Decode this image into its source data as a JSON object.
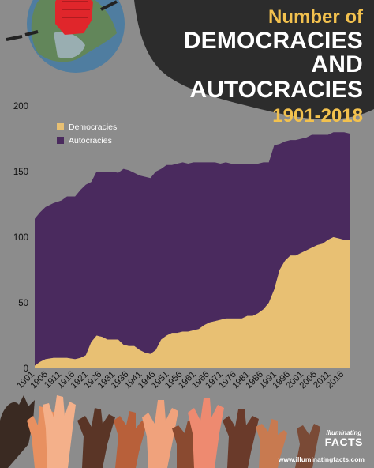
{
  "header": {
    "title_line1": "Number of",
    "title_line2": "DEMOCRACIES AND",
    "title_line3": "AUTOCRACIES",
    "title_years": "1901-2018"
  },
  "branding": {
    "line1": "Illuminating",
    "line2": "FACTS",
    "url": "www.illuminatingfacts.com"
  },
  "colors": {
    "democracies": "#e8c073",
    "autocracies": "#4a2a5e",
    "background": "#8c8c8c",
    "header": "#2c2c2c",
    "accent": "#f2c14e"
  },
  "chart_data": {
    "type": "area",
    "stacked": true,
    "ylim": [
      0,
      200
    ],
    "yticks": [
      0,
      50,
      100,
      150,
      200
    ],
    "xlim": [
      1901,
      2018
    ],
    "xtick_labels": [
      "1901",
      "1906",
      "1911",
      "1916",
      "1921",
      "1926",
      "1931",
      "1936",
      "1941",
      "1946",
      "1951",
      "1956",
      "1961",
      "1966",
      "1971",
      "1976",
      "1981",
      "1986",
      "1991",
      "1996",
      "2001",
      "2006",
      "2011",
      "2016"
    ],
    "legend": {
      "position": "top-left",
      "entries": [
        "Democracies",
        "Autocracies"
      ]
    },
    "x": [
      1901,
      1903,
      1905,
      1908,
      1911,
      1913,
      1916,
      1918,
      1920,
      1922,
      1924,
      1926,
      1928,
      1930,
      1932,
      1934,
      1936,
      1938,
      1940,
      1942,
      1944,
      1946,
      1948,
      1950,
      1952,
      1954,
      1956,
      1958,
      1960,
      1962,
      1964,
      1966,
      1968,
      1970,
      1972,
      1974,
      1976,
      1978,
      1980,
      1982,
      1984,
      1986,
      1988,
      1990,
      1992,
      1994,
      1996,
      1998,
      2000,
      2002,
      2004,
      2006,
      2008,
      2010,
      2012,
      2014,
      2016,
      2018
    ],
    "series": [
      {
        "name": "Democracies",
        "values": [
          2,
          5,
          7,
          8,
          8,
          8,
          7,
          8,
          10,
          20,
          25,
          24,
          22,
          22,
          22,
          18,
          17,
          17,
          14,
          12,
          11,
          14,
          22,
          25,
          27,
          27,
          28,
          28,
          29,
          30,
          33,
          35,
          36,
          37,
          38,
          38,
          38,
          38,
          40,
          40,
          42,
          45,
          50,
          60,
          75,
          82,
          86,
          86,
          88,
          90,
          92,
          94,
          95,
          98,
          100,
          99,
          98,
          98
        ]
      },
      {
        "name": "Autocracies",
        "values": [
          112,
          114,
          116,
          118,
          120,
          123,
          124,
          128,
          130,
          122,
          125,
          126,
          128,
          128,
          127,
          134,
          134,
          132,
          133,
          134,
          134,
          136,
          130,
          130,
          128,
          129,
          129,
          128,
          128,
          127,
          124,
          122,
          121,
          119,
          119,
          118,
          118,
          118,
          116,
          116,
          114,
          112,
          107,
          110,
          96,
          91,
          88,
          88,
          87,
          86,
          86,
          84,
          83,
          80,
          80,
          81,
          82,
          81
        ]
      }
    ]
  }
}
